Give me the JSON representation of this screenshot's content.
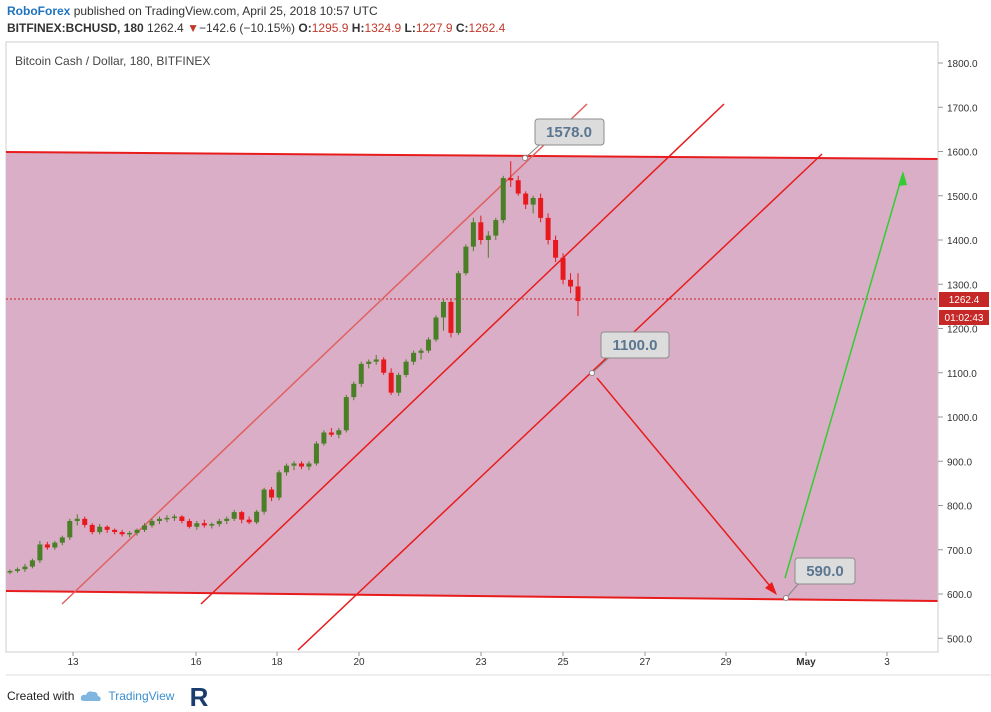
{
  "header": {
    "brand": "RoboForex",
    "published": "published on TradingView.com, April 25, 2018 10:57 UTC",
    "symbol": "BITFINEX:BCHUSD, 180",
    "last": "1262.4",
    "change": "−142.6 (−10.15%)",
    "o_label": "O:",
    "o": "1295.9",
    "h_label": "H:",
    "h": "1324.9",
    "l_label": "L:",
    "l": "1227.9",
    "c_label": "C:",
    "c": "1262.4"
  },
  "footer": {
    "created": "Created with",
    "tv": "TradingView",
    "logo_letter": "R"
  },
  "colors": {
    "up": "#4a7f27",
    "down": "#e8191c",
    "zone": "#d9aec6",
    "line": "#e81c1c",
    "green_arrow": "#33cc33"
  },
  "chart_data": {
    "type": "candlestick",
    "title": "Bitcoin Cash / Dollar, 180, BITFINEX",
    "ylim": [
      470,
      1830
    ],
    "y_ticks": [
      "1800.0",
      "1700.0",
      "1600.0",
      "1500.0",
      "1400.0",
      "1300.0",
      "1200.0",
      "1100.0",
      "1000.0",
      "900.0",
      "800.0",
      "700.0",
      "600.0",
      "500.0"
    ],
    "x_ticks": [
      "13",
      "16",
      "18",
      "20",
      "23",
      "25",
      "27",
      "29",
      "May",
      "3"
    ],
    "price_tag": "1262.4",
    "countdown": "01:02:43",
    "annotations": [
      "1578.0",
      "1100.0",
      "590.0"
    ],
    "series": [
      {
        "name": "BCHUSD",
        "ohlc": [
          [
            650,
            655,
            645,
            652
          ],
          [
            652,
            660,
            648,
            656
          ],
          [
            656,
            668,
            650,
            662
          ],
          [
            662,
            680,
            658,
            676
          ],
          [
            676,
            720,
            670,
            712
          ],
          [
            712,
            718,
            700,
            705
          ],
          [
            705,
            720,
            700,
            716
          ],
          [
            716,
            732,
            710,
            728
          ],
          [
            728,
            770,
            722,
            765
          ],
          [
            765,
            780,
            755,
            770
          ],
          [
            770,
            775,
            750,
            756
          ],
          [
            756,
            760,
            735,
            740
          ],
          [
            740,
            758,
            735,
            752
          ],
          [
            752,
            755,
            738,
            745
          ],
          [
            745,
            748,
            735,
            740
          ],
          [
            740,
            745,
            730,
            735
          ],
          [
            735,
            742,
            728,
            738
          ],
          [
            738,
            748,
            732,
            745
          ],
          [
            745,
            760,
            740,
            755
          ],
          [
            755,
            770,
            750,
            765
          ],
          [
            765,
            775,
            758,
            770
          ],
          [
            770,
            778,
            762,
            772
          ],
          [
            772,
            780,
            765,
            775
          ],
          [
            775,
            778,
            760,
            765
          ],
          [
            765,
            770,
            748,
            752
          ],
          [
            752,
            765,
            745,
            760
          ],
          [
            760,
            768,
            750,
            755
          ],
          [
            755,
            762,
            748,
            758
          ],
          [
            758,
            770,
            752,
            765
          ],
          [
            765,
            775,
            758,
            770
          ],
          [
            770,
            790,
            765,
            785
          ],
          [
            785,
            788,
            760,
            768
          ],
          [
            768,
            775,
            758,
            762
          ],
          [
            762,
            790,
            758,
            786
          ],
          [
            786,
            840,
            780,
            836
          ],
          [
            836,
            842,
            810,
            818
          ],
          [
            818,
            880,
            812,
            875
          ],
          [
            875,
            895,
            868,
            890
          ],
          [
            890,
            900,
            880,
            895
          ],
          [
            895,
            900,
            882,
            888
          ],
          [
            888,
            900,
            880,
            895
          ],
          [
            895,
            945,
            890,
            940
          ],
          [
            940,
            970,
            935,
            965
          ],
          [
            965,
            975,
            955,
            960
          ],
          [
            960,
            975,
            952,
            970
          ],
          [
            970,
            1050,
            965,
            1045
          ],
          [
            1045,
            1080,
            1038,
            1075
          ],
          [
            1075,
            1125,
            1068,
            1120
          ],
          [
            1120,
            1130,
            1110,
            1125
          ],
          [
            1125,
            1140,
            1118,
            1130
          ],
          [
            1130,
            1135,
            1095,
            1100
          ],
          [
            1100,
            1110,
            1050,
            1055
          ],
          [
            1055,
            1100,
            1048,
            1095
          ],
          [
            1095,
            1130,
            1090,
            1125
          ],
          [
            1125,
            1150,
            1118,
            1145
          ],
          [
            1145,
            1155,
            1130,
            1150
          ],
          [
            1150,
            1180,
            1145,
            1175
          ],
          [
            1175,
            1230,
            1170,
            1225
          ],
          [
            1225,
            1265,
            1195,
            1260
          ],
          [
            1260,
            1265,
            1180,
            1190
          ],
          [
            1190,
            1330,
            1185,
            1325
          ],
          [
            1325,
            1390,
            1320,
            1385
          ],
          [
            1385,
            1450,
            1375,
            1440
          ],
          [
            1440,
            1455,
            1390,
            1400
          ],
          [
            1400,
            1420,
            1360,
            1410
          ],
          [
            1410,
            1450,
            1400,
            1445
          ],
          [
            1445,
            1545,
            1438,
            1540
          ],
          [
            1540,
            1578,
            1520,
            1535
          ],
          [
            1535,
            1545,
            1500,
            1505
          ],
          [
            1505,
            1510,
            1470,
            1480
          ],
          [
            1480,
            1500,
            1460,
            1495
          ],
          [
            1495,
            1505,
            1440,
            1450
          ],
          [
            1450,
            1460,
            1390,
            1400
          ],
          [
            1400,
            1410,
            1350,
            1360
          ],
          [
            1360,
            1370,
            1300,
            1310
          ],
          [
            1310,
            1325,
            1280,
            1295
          ],
          [
            1295,
            1325,
            1228,
            1262
          ]
        ]
      }
    ]
  }
}
